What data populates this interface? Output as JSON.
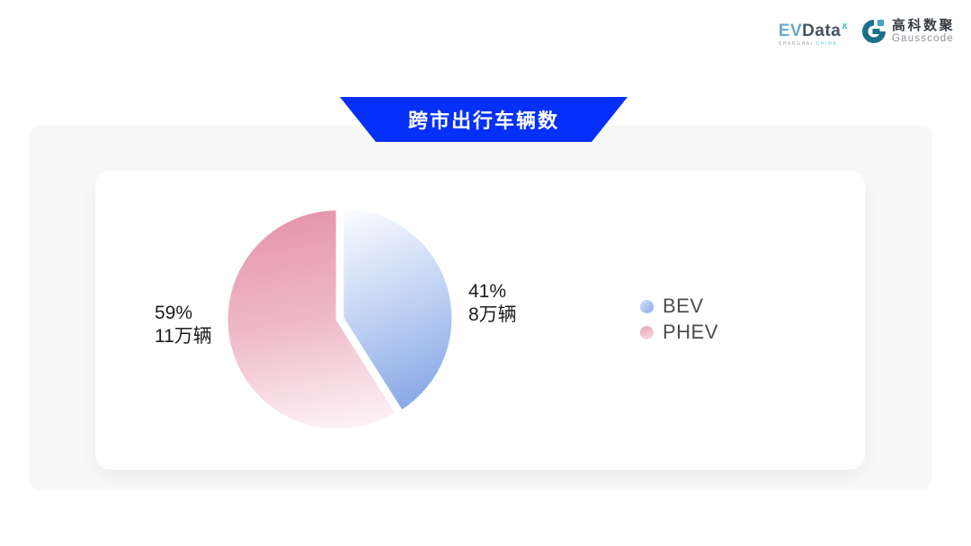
{
  "header": {
    "evdata": {
      "ev": "EV",
      "data": "Data",
      "sup": "x",
      "sub_left": "SHANGHAI",
      "sub_right": "CHINA"
    },
    "gausscode": {
      "cn": "高科数聚",
      "en": "Gausscode"
    }
  },
  "banner": {
    "title": "跨市出行车辆数"
  },
  "labels": {
    "bev": {
      "percent": "41%",
      "amount": "8万辆"
    },
    "phev": {
      "percent": "59%",
      "amount": "11万辆"
    }
  },
  "legend": [
    {
      "label": "BEV"
    },
    {
      "label": "PHEV"
    }
  ],
  "colors": {
    "banner_blue": "#0530fa",
    "bev_dark": "#7ba0e4",
    "bev_light": "#ffffff",
    "phev_dark": "#e695ac",
    "phev_light": "#fdf3f6",
    "panel_bg": "#f8f8f8",
    "card_bg": "#ffffff",
    "legend_text": "#4d4d4d",
    "label_text": "#1c1c1c"
  },
  "chart_data": {
    "type": "pie",
    "title": "跨市出行车辆数",
    "categories": [
      "BEV",
      "PHEV"
    ],
    "values": [
      8,
      11
    ],
    "unit": "万辆",
    "percents": [
      41,
      59
    ],
    "labels": [
      "41% 8万辆",
      "59% 11万辆"
    ],
    "colors": [
      "#7ba0e4",
      "#e695ac"
    ],
    "start_angle_deg": 0,
    "direction": "clockwise",
    "legend_position": "right",
    "radius_px": 123
  }
}
